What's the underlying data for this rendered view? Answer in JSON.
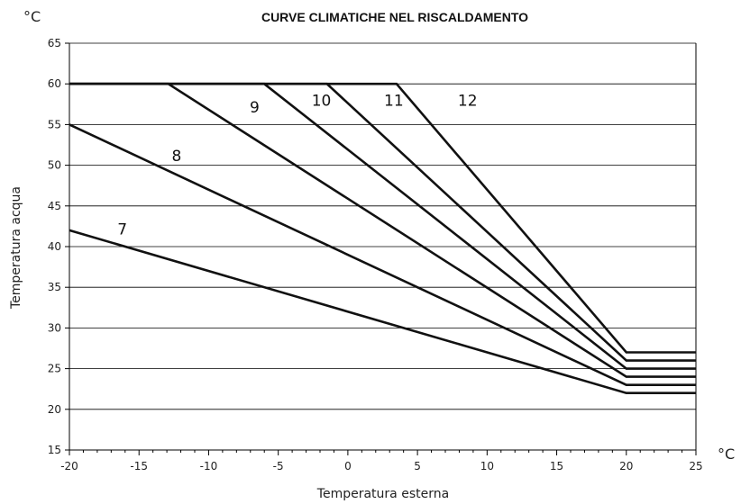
{
  "chart_data": {
    "type": "line",
    "title": "CURVE CLIMATICHE NEL RISCALDAMENTO",
    "xlabel": "Temperatura esterna",
    "ylabel": "Temperatura acqua",
    "x_unit": "°C",
    "y_unit": "°C",
    "xlim": [
      -20,
      25
    ],
    "ylim": [
      15,
      65
    ],
    "xticks": [
      -20,
      -15,
      -10,
      -5,
      0,
      5,
      10,
      15,
      20,
      25
    ],
    "yticks": [
      15,
      20,
      25,
      30,
      35,
      40,
      45,
      50,
      55,
      60,
      65
    ],
    "grid": "horizontal",
    "series": [
      {
        "name": "7",
        "x": [
          -20,
          20,
          25
        ],
        "y": [
          42,
          22,
          22
        ]
      },
      {
        "name": "8",
        "x": [
          -20,
          20,
          25
        ],
        "y": [
          55,
          23,
          23
        ]
      },
      {
        "name": "9",
        "x": [
          -20,
          -12.9,
          20,
          25
        ],
        "y": [
          60,
          60,
          24,
          24
        ]
      },
      {
        "name": "10",
        "x": [
          -20,
          -6,
          20,
          25
        ],
        "y": [
          60,
          60,
          25,
          25
        ]
      },
      {
        "name": "11",
        "x": [
          -20,
          -1.5,
          20,
          25
        ],
        "y": [
          60,
          60,
          26,
          26
        ]
      },
      {
        "name": "12",
        "x": [
          -20,
          3.5,
          20,
          25
        ],
        "y": [
          60,
          60,
          27,
          27
        ]
      }
    ],
    "series_labels": [
      {
        "name": "7",
        "x": -16.2,
        "y": 41.5
      },
      {
        "name": "8",
        "x": -12.3,
        "y": 50.5
      },
      {
        "name": "9",
        "x": -6.7,
        "y": 56.5
      },
      {
        "name": "10",
        "x": -1.9,
        "y": 57.3
      },
      {
        "name": "11",
        "x": 3.3,
        "y": 57.3
      },
      {
        "name": "12",
        "x": 8.6,
        "y": 57.3
      }
    ]
  }
}
